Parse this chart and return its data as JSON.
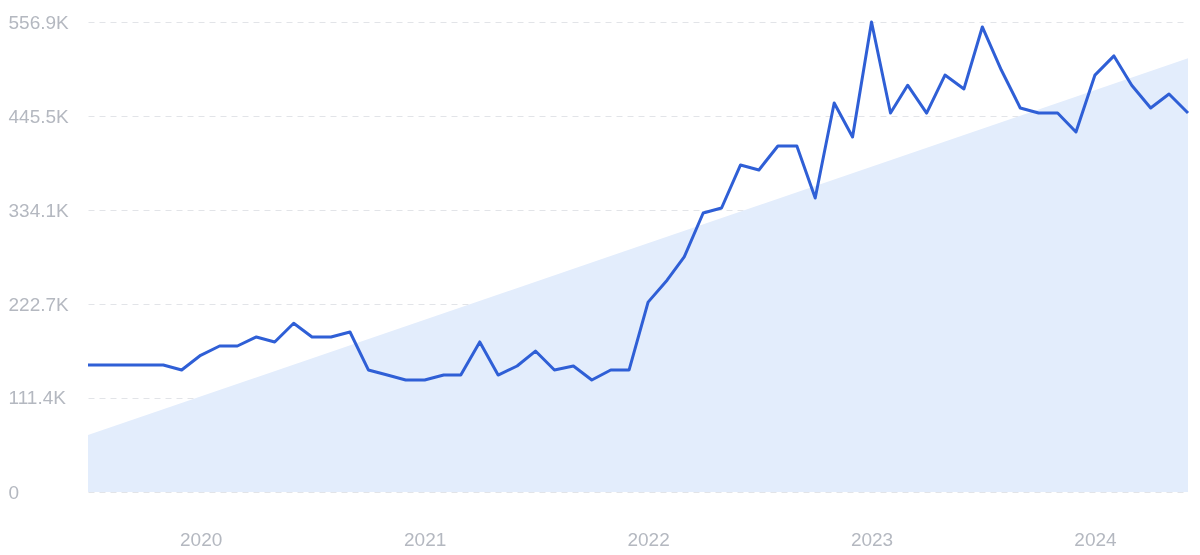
{
  "chart_data": {
    "type": "line",
    "x": [
      "2019-07",
      "2019-08",
      "2019-09",
      "2019-10",
      "2019-11",
      "2019-12",
      "2020-01",
      "2020-02",
      "2020-03",
      "2020-04",
      "2020-05",
      "2020-06",
      "2020-07",
      "2020-08",
      "2020-09",
      "2020-10",
      "2020-11",
      "2020-12",
      "2021-01",
      "2021-02",
      "2021-03",
      "2021-04",
      "2021-05",
      "2021-06",
      "2021-07",
      "2021-08",
      "2021-09",
      "2021-10",
      "2021-11",
      "2021-12",
      "2022-01",
      "2022-02",
      "2022-03",
      "2022-04",
      "2022-05",
      "2022-06",
      "2022-07",
      "2022-08",
      "2022-09",
      "2022-10",
      "2022-11",
      "2022-12",
      "2023-01",
      "2023-02",
      "2023-03",
      "2023-04",
      "2023-05",
      "2023-06",
      "2023-07",
      "2023-08",
      "2023-09",
      "2023-10",
      "2023-11",
      "2023-12",
      "2024-01",
      "2024-02",
      "2024-03",
      "2024-04",
      "2024-05",
      "2024-06"
    ],
    "series": [
      {
        "type": "area",
        "color": "#e3edfc",
        "x": [
          "2019-07",
          "2024-06"
        ],
        "values": [
          67500,
          514000
        ]
      },
      {
        "color": "#2f5fd6",
        "values": [
          150500,
          150500,
          150500,
          150500,
          150500,
          144600,
          162000,
          173000,
          173000,
          183700,
          177800,
          200000,
          183700,
          183700,
          189600,
          144600,
          138600,
          132700,
          132700,
          138600,
          138600,
          177800,
          138600,
          149300,
          167000,
          144600,
          149300,
          132700,
          144600,
          144600,
          225000,
          251000,
          278500,
          330600,
          336500,
          387500,
          381600,
          410000,
          410000,
          348400,
          461000,
          420700,
          556900,
          449000,
          482000,
          449000,
          494000,
          477600,
          551000,
          500000,
          455000,
          449000,
          449000,
          426600,
          494000,
          516700,
          482000,
          455000,
          471600,
          449000
        ]
      }
    ],
    "xlim": [
      "2019-07",
      "2024-06"
    ],
    "xticks": [
      {
        "value": "2020-01",
        "label": "2020"
      },
      {
        "value": "2021-01",
        "label": "2021"
      },
      {
        "value": "2022-01",
        "label": "2022"
      },
      {
        "value": "2023-01",
        "label": "2023"
      },
      {
        "value": "2024-01",
        "label": "2024"
      }
    ],
    "ylim": [
      0,
      556900
    ],
    "yticks": [
      0,
      {
        "value": 111400,
        "label": "111.4K"
      },
      {
        "value": 222700,
        "label": "222.7K"
      },
      {
        "value": 334100,
        "label": "334.1K"
      },
      {
        "value": 445500,
        "label": "445.5K"
      },
      {
        "value": 556900,
        "label": "556.9K"
      }
    ],
    "grid": "y",
    "line_style": "solid"
  }
}
